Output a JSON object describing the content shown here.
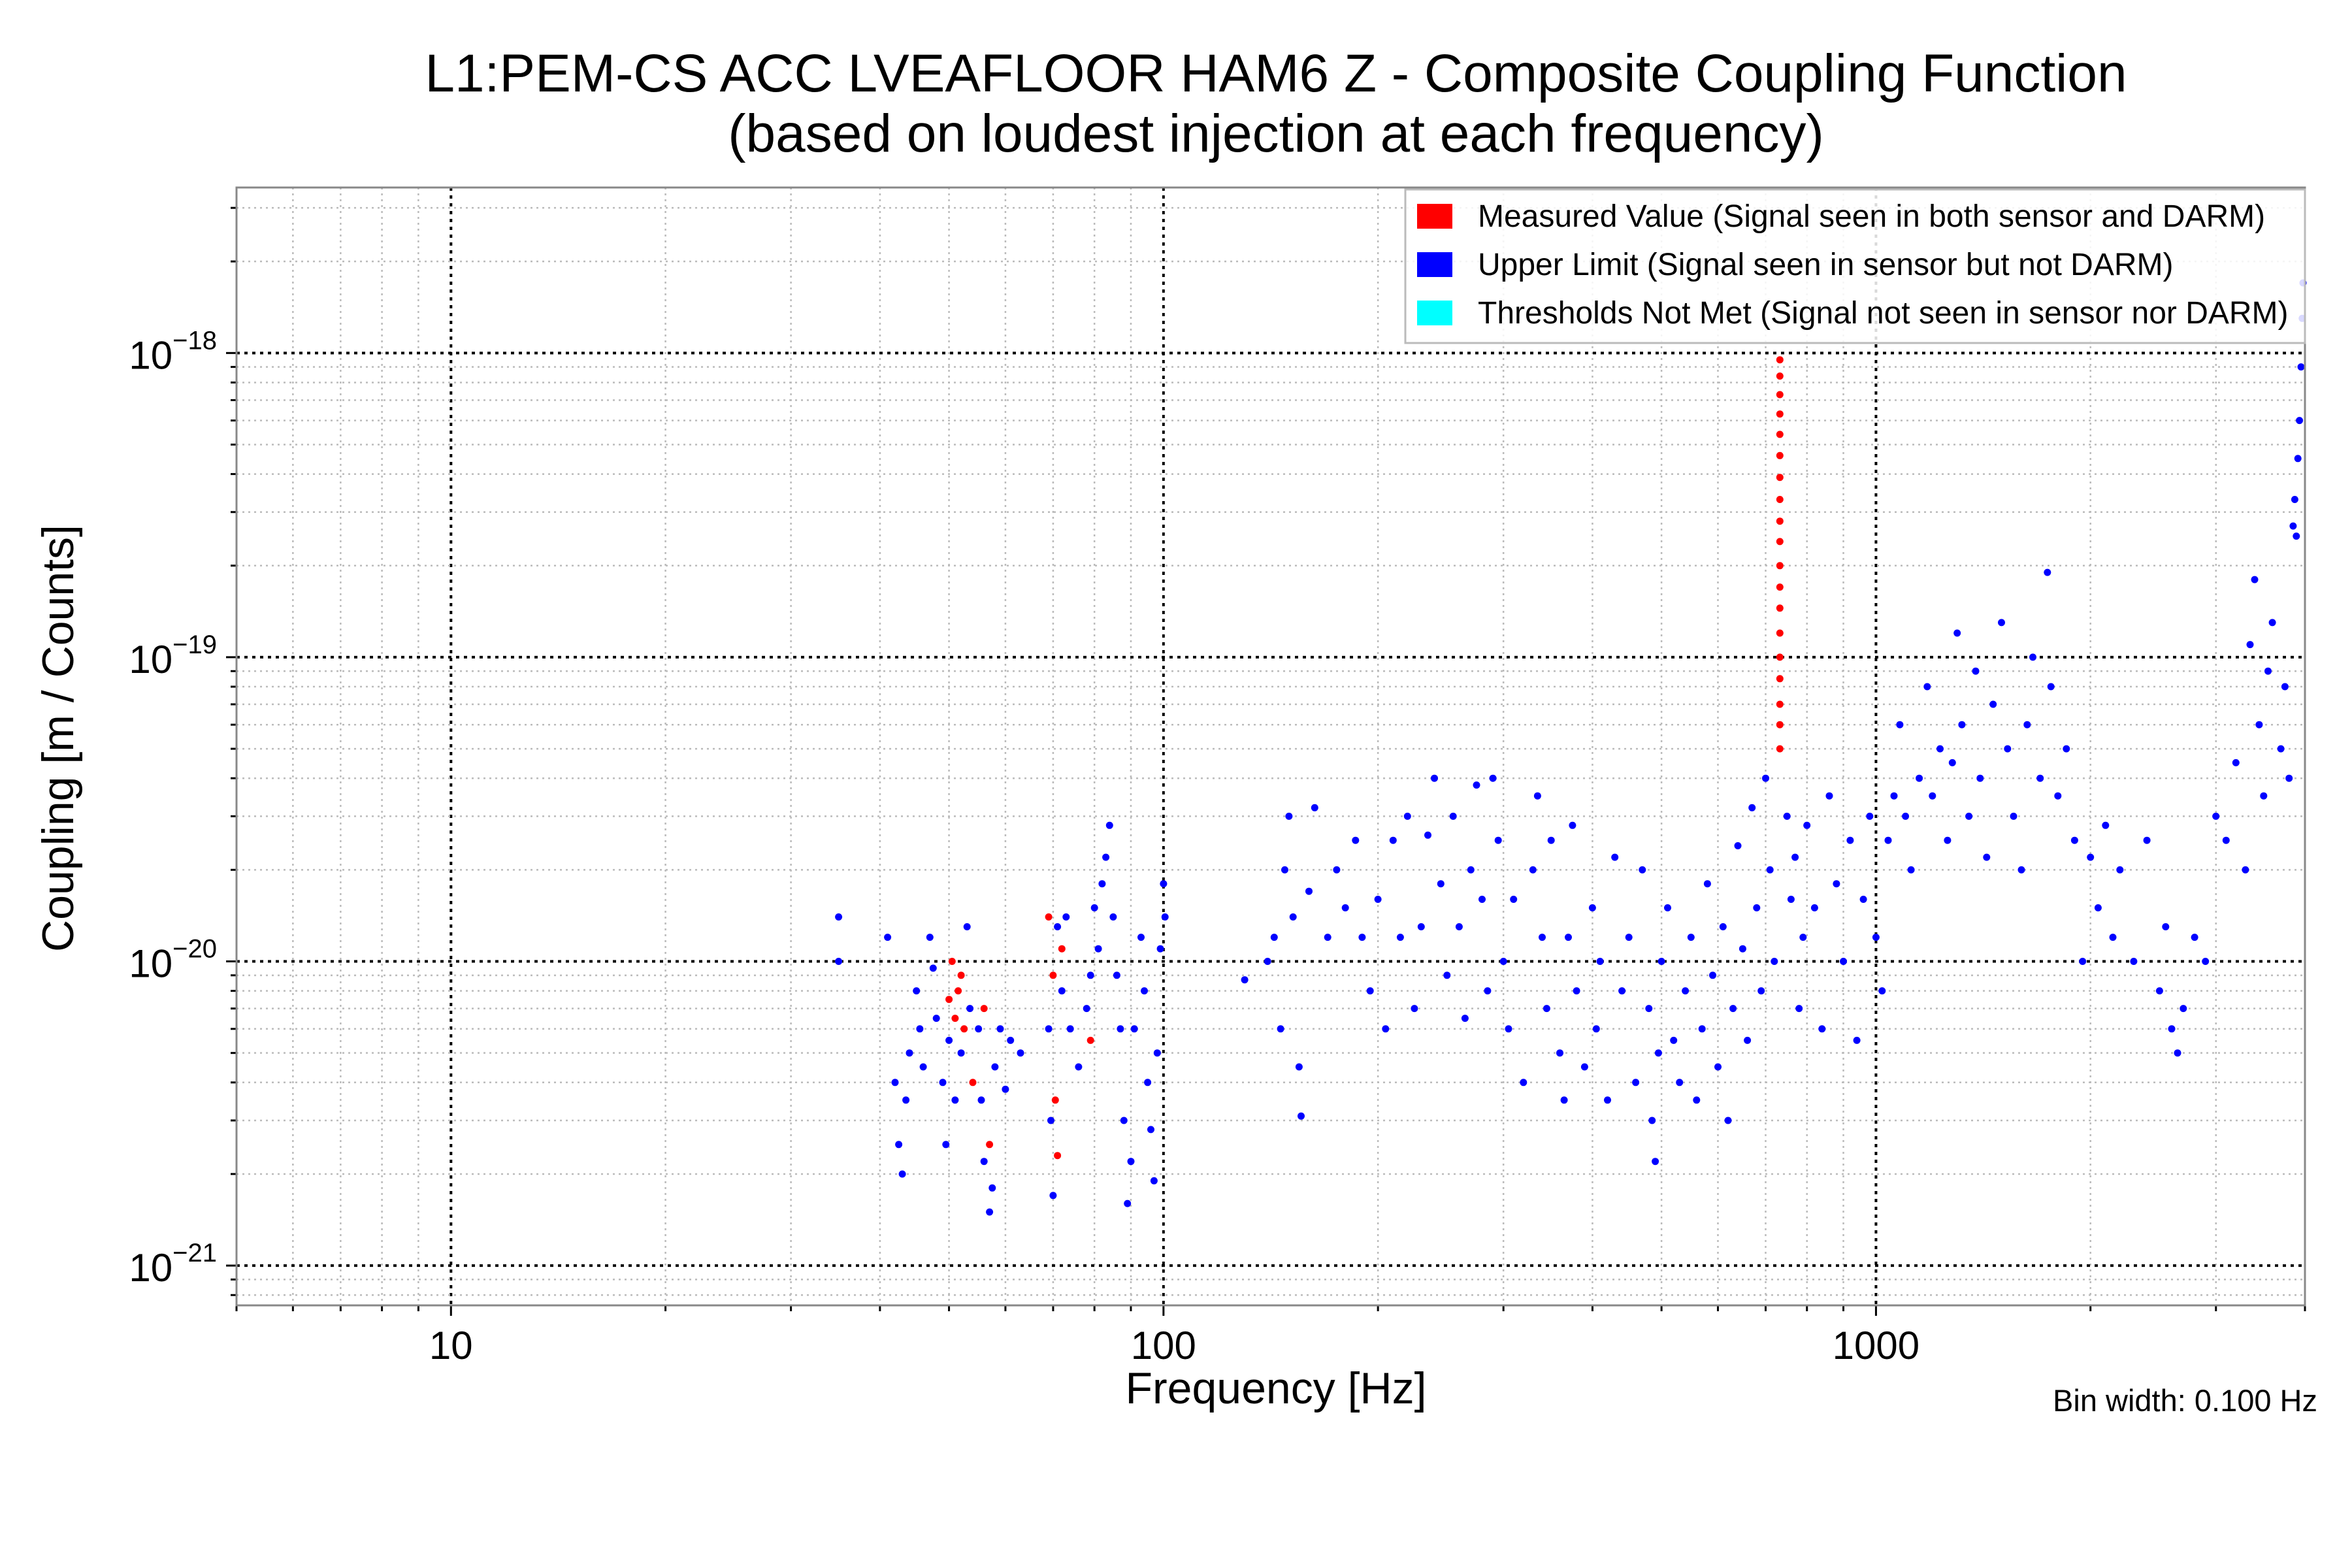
{
  "chart_data": {
    "type": "scatter",
    "title": [
      "L1:PEM-CS ACC LVEAFLOOR HAM6 Z - Composite Coupling Function",
      "(based on loudest injection at each frequency)"
    ],
    "xlabel": "Frequency [Hz]",
    "ylabel": "Coupling [m / Counts]",
    "xscale": "log",
    "yscale": "log",
    "xlim": [
      5,
      4000
    ],
    "ylim": [
      7.4e-22,
      3.5e-18
    ],
    "grid": true,
    "legend_position": "top-right",
    "annotation": "Bin width: 0.100 Hz",
    "xticks": [
      {
        "value": 10,
        "label": "10"
      },
      {
        "value": 100,
        "label": "100"
      },
      {
        "value": 1000,
        "label": "1000"
      }
    ],
    "yticks": [
      {
        "value": 1e-18,
        "base": "10",
        "exp": "−18"
      },
      {
        "value": 1e-19,
        "base": "10",
        "exp": "−19"
      },
      {
        "value": 1e-20,
        "base": "10",
        "exp": "−20"
      },
      {
        "value": 1e-21,
        "base": "10",
        "exp": "−21"
      }
    ],
    "series": [
      {
        "name": "Measured Value (Signal seen in both sensor and DARM)",
        "color": "#ff0000",
        "points": [
          [
            50,
            7.5e-21
          ],
          [
            50.5,
            1e-20
          ],
          [
            51,
            6.5e-21
          ],
          [
            51.5,
            8e-21
          ],
          [
            52,
            9e-21
          ],
          [
            52.5,
            6e-21
          ],
          [
            54,
            4e-21
          ],
          [
            56,
            7e-21
          ],
          [
            57,
            2.5e-21
          ],
          [
            69,
            1.4e-20
          ],
          [
            70,
            9e-21
          ],
          [
            70.5,
            3.5e-21
          ],
          [
            71,
            2.3e-21
          ],
          [
            72,
            1.1e-20
          ],
          [
            79,
            5.5e-21
          ],
          [
            733,
            5e-20
          ],
          [
            733,
            6e-20
          ],
          [
            733,
            7e-20
          ],
          [
            733,
            8.5e-20
          ],
          [
            733,
            1e-19
          ],
          [
            733,
            1.2e-19
          ],
          [
            733,
            1.45e-19
          ],
          [
            733,
            1.7e-19
          ],
          [
            733,
            2e-19
          ],
          [
            733,
            2.4e-19
          ],
          [
            733,
            2.8e-19
          ],
          [
            733,
            3.3e-19
          ],
          [
            733,
            3.9e-19
          ],
          [
            733,
            4.6e-19
          ],
          [
            733,
            5.4e-19
          ],
          [
            733,
            6.3e-19
          ],
          [
            733,
            7.3e-19
          ],
          [
            733,
            8.4e-19
          ],
          [
            733,
            9.5e-19
          ]
        ]
      },
      {
        "name": "Upper Limit (Signal seen in sensor but not DARM)",
        "color": "#0000ff",
        "points": [
          [
            35,
            1.4e-20
          ],
          [
            35,
            1e-20
          ],
          [
            41,
            1.2e-20
          ],
          [
            42,
            4e-21
          ],
          [
            42.5,
            2.5e-21
          ],
          [
            43,
            2e-21
          ],
          [
            43.5,
            3.5e-21
          ],
          [
            44,
            5e-21
          ],
          [
            45,
            8e-21
          ],
          [
            45.5,
            6e-21
          ],
          [
            46,
            4.5e-21
          ],
          [
            47,
            1.2e-20
          ],
          [
            47.5,
            9.5e-21
          ],
          [
            48,
            6.5e-21
          ],
          [
            49,
            4e-21
          ],
          [
            49.5,
            2.5e-21
          ],
          [
            50,
            5.5e-21
          ],
          [
            51,
            3.5e-21
          ],
          [
            52,
            5e-21
          ],
          [
            53,
            1.3e-20
          ],
          [
            53.5,
            7e-21
          ],
          [
            55,
            6e-21
          ],
          [
            55.5,
            3.5e-21
          ],
          [
            56,
            2.2e-21
          ],
          [
            57,
            1.5e-21
          ],
          [
            57.5,
            1.8e-21
          ],
          [
            58,
            4.5e-21
          ],
          [
            59,
            6e-21
          ],
          [
            60,
            3.8e-21
          ],
          [
            61,
            5.5e-21
          ],
          [
            63,
            5e-21
          ],
          [
            69,
            6e-21
          ],
          [
            69.5,
            3e-21
          ],
          [
            70,
            1.7e-21
          ],
          [
            71,
            1.3e-20
          ],
          [
            72,
            8e-21
          ],
          [
            73,
            1.4e-20
          ],
          [
            74,
            6e-21
          ],
          [
            76,
            4.5e-21
          ],
          [
            78,
            7e-21
          ],
          [
            79,
            9e-21
          ],
          [
            80,
            1.5e-20
          ],
          [
            81,
            1.1e-20
          ],
          [
            82,
            1.8e-20
          ],
          [
            83,
            2.2e-20
          ],
          [
            84,
            2.8e-20
          ],
          [
            85,
            1.4e-20
          ],
          [
            86,
            9e-21
          ],
          [
            87,
            6e-21
          ],
          [
            88,
            3e-21
          ],
          [
            89,
            1.6e-21
          ],
          [
            90,
            2.2e-21
          ],
          [
            91,
            6e-21
          ],
          [
            93,
            1.2e-20
          ],
          [
            94,
            8e-21
          ],
          [
            95,
            4e-21
          ],
          [
            96,
            2.8e-21
          ],
          [
            97,
            1.9e-21
          ],
          [
            98,
            5e-21
          ],
          [
            99,
            1.1e-20
          ],
          [
            100,
            1.8e-20
          ],
          [
            100.5,
            1.4e-20
          ],
          [
            130,
            8.7e-21
          ],
          [
            140,
            1e-20
          ],
          [
            143,
            1.2e-20
          ],
          [
            146,
            6e-21
          ],
          [
            148,
            2e-20
          ],
          [
            150,
            3e-20
          ],
          [
            152,
            1.4e-20
          ],
          [
            155,
            4.5e-21
          ],
          [
            156,
            3.1e-21
          ],
          [
            160,
            1.7e-20
          ],
          [
            163,
            3.2e-20
          ],
          [
            170,
            1.2e-20
          ],
          [
            175,
            2e-20
          ],
          [
            180,
            1.5e-20
          ],
          [
            186,
            2.5e-20
          ],
          [
            190,
            1.2e-20
          ],
          [
            195,
            8e-21
          ],
          [
            200,
            1.6e-20
          ],
          [
            205,
            6e-21
          ],
          [
            210,
            2.5e-20
          ],
          [
            215,
            1.2e-20
          ],
          [
            220,
            3e-20
          ],
          [
            225,
            7e-21
          ],
          [
            230,
            1.3e-20
          ],
          [
            235,
            2.6e-20
          ],
          [
            240,
            4e-20
          ],
          [
            245,
            1.8e-20
          ],
          [
            250,
            9e-21
          ],
          [
            255,
            3e-20
          ],
          [
            260,
            1.3e-20
          ],
          [
            265,
            6.5e-21
          ],
          [
            270,
            2e-20
          ],
          [
            275,
            3.8e-20
          ],
          [
            280,
            1.6e-20
          ],
          [
            285,
            8e-21
          ],
          [
            290,
            4e-20
          ],
          [
            295,
            2.5e-20
          ],
          [
            300,
            1e-20
          ],
          [
            305,
            6e-21
          ],
          [
            310,
            1.6e-20
          ],
          [
            320,
            4e-21
          ],
          [
            330,
            2e-20
          ],
          [
            335,
            3.5e-20
          ],
          [
            340,
            1.2e-20
          ],
          [
            345,
            7e-21
          ],
          [
            350,
            2.5e-20
          ],
          [
            360,
            5e-21
          ],
          [
            365,
            3.5e-21
          ],
          [
            370,
            1.2e-20
          ],
          [
            375,
            2.8e-20
          ],
          [
            380,
            8e-21
          ],
          [
            390,
            4.5e-21
          ],
          [
            400,
            1.5e-20
          ],
          [
            405,
            6e-21
          ],
          [
            410,
            1e-20
          ],
          [
            420,
            3.5e-21
          ],
          [
            430,
            2.2e-20
          ],
          [
            440,
            8e-21
          ],
          [
            450,
            1.2e-20
          ],
          [
            460,
            4e-21
          ],
          [
            470,
            2e-20
          ],
          [
            480,
            7e-21
          ],
          [
            485,
            3e-21
          ],
          [
            490,
            2.2e-21
          ],
          [
            495,
            5e-21
          ],
          [
            500,
            1e-20
          ],
          [
            510,
            1.5e-20
          ],
          [
            520,
            5.5e-21
          ],
          [
            530,
            4e-21
          ],
          [
            540,
            8e-21
          ],
          [
            550,
            1.2e-20
          ],
          [
            560,
            3.5e-21
          ],
          [
            570,
            6e-21
          ],
          [
            580,
            1.8e-20
          ],
          [
            590,
            9e-21
          ],
          [
            600,
            4.5e-21
          ],
          [
            610,
            1.3e-20
          ],
          [
            620,
            3e-21
          ],
          [
            630,
            7e-21
          ],
          [
            640,
            2.4e-20
          ],
          [
            650,
            1.1e-20
          ],
          [
            660,
            5.5e-21
          ],
          [
            670,
            3.2e-20
          ],
          [
            680,
            1.5e-20
          ],
          [
            690,
            8e-21
          ],
          [
            700,
            4e-20
          ],
          [
            710,
            2e-20
          ],
          [
            720,
            1e-20
          ],
          [
            750,
            3e-20
          ],
          [
            760,
            1.6e-20
          ],
          [
            770,
            2.2e-20
          ],
          [
            780,
            7e-21
          ],
          [
            790,
            1.2e-20
          ],
          [
            800,
            2.8e-20
          ],
          [
            820,
            1.5e-20
          ],
          [
            840,
            6e-21
          ],
          [
            860,
            3.5e-20
          ],
          [
            880,
            1.8e-20
          ],
          [
            900,
            1e-20
          ],
          [
            920,
            2.5e-20
          ],
          [
            940,
            5.5e-21
          ],
          [
            960,
            1.6e-20
          ],
          [
            980,
            3e-20
          ],
          [
            1000,
            1.2e-20
          ],
          [
            1020,
            8e-21
          ],
          [
            1040,
            2.5e-20
          ],
          [
            1060,
            3.5e-20
          ],
          [
            1080,
            6e-20
          ],
          [
            1100,
            3e-20
          ],
          [
            1120,
            2e-20
          ],
          [
            1150,
            4e-20
          ],
          [
            1180,
            8e-20
          ],
          [
            1200,
            3.5e-20
          ],
          [
            1230,
            5e-20
          ],
          [
            1260,
            2.5e-20
          ],
          [
            1280,
            4.5e-20
          ],
          [
            1300,
            1.2e-19
          ],
          [
            1320,
            6e-20
          ],
          [
            1350,
            3e-20
          ],
          [
            1380,
            9e-20
          ],
          [
            1400,
            4e-20
          ],
          [
            1430,
            2.2e-20
          ],
          [
            1460,
            7e-20
          ],
          [
            1500,
            1.3e-19
          ],
          [
            1530,
            5e-20
          ],
          [
            1560,
            3e-20
          ],
          [
            1600,
            2e-20
          ],
          [
            1630,
            6e-20
          ],
          [
            1660,
            1e-19
          ],
          [
            1700,
            4e-20
          ],
          [
            1740,
            1.9e-19
          ],
          [
            1760,
            8e-20
          ],
          [
            1800,
            3.5e-20
          ],
          [
            1850,
            5e-20
          ],
          [
            1900,
            2.5e-20
          ],
          [
            1950,
            1e-20
          ],
          [
            2000,
            2.2e-20
          ],
          [
            2050,
            1.5e-20
          ],
          [
            2100,
            2.8e-20
          ],
          [
            2150,
            1.2e-20
          ],
          [
            2200,
            2e-20
          ],
          [
            2300,
            1e-20
          ],
          [
            2400,
            2.5e-20
          ],
          [
            2500,
            8e-21
          ],
          [
            2550,
            1.3e-20
          ],
          [
            2600,
            6e-21
          ],
          [
            2650,
            5e-21
          ],
          [
            2700,
            7e-21
          ],
          [
            2800,
            1.2e-20
          ],
          [
            2900,
            1e-20
          ],
          [
            3000,
            3e-20
          ],
          [
            3100,
            2.5e-20
          ],
          [
            3200,
            4.5e-20
          ],
          [
            3300,
            2e-20
          ],
          [
            3350,
            1.1e-19
          ],
          [
            3400,
            1.8e-19
          ],
          [
            3450,
            6e-20
          ],
          [
            3500,
            3.5e-20
          ],
          [
            3550,
            9e-20
          ],
          [
            3600,
            1.3e-19
          ],
          [
            3700,
            5e-20
          ],
          [
            3750,
            8e-20
          ],
          [
            3800,
            4e-20
          ],
          [
            3850,
            2.7e-19
          ],
          [
            3870,
            3.3e-19
          ],
          [
            3890,
            2.5e-19
          ],
          [
            3910,
            4.5e-19
          ],
          [
            3930,
            6e-19
          ],
          [
            3950,
            9e-19
          ],
          [
            3965,
            1.3e-18
          ],
          [
            3975,
            1.7e-18
          ]
        ]
      },
      {
        "name": "Thresholds Not Met (Signal not seen in sensor nor DARM)",
        "color": "#00ffff",
        "points": []
      }
    ]
  }
}
